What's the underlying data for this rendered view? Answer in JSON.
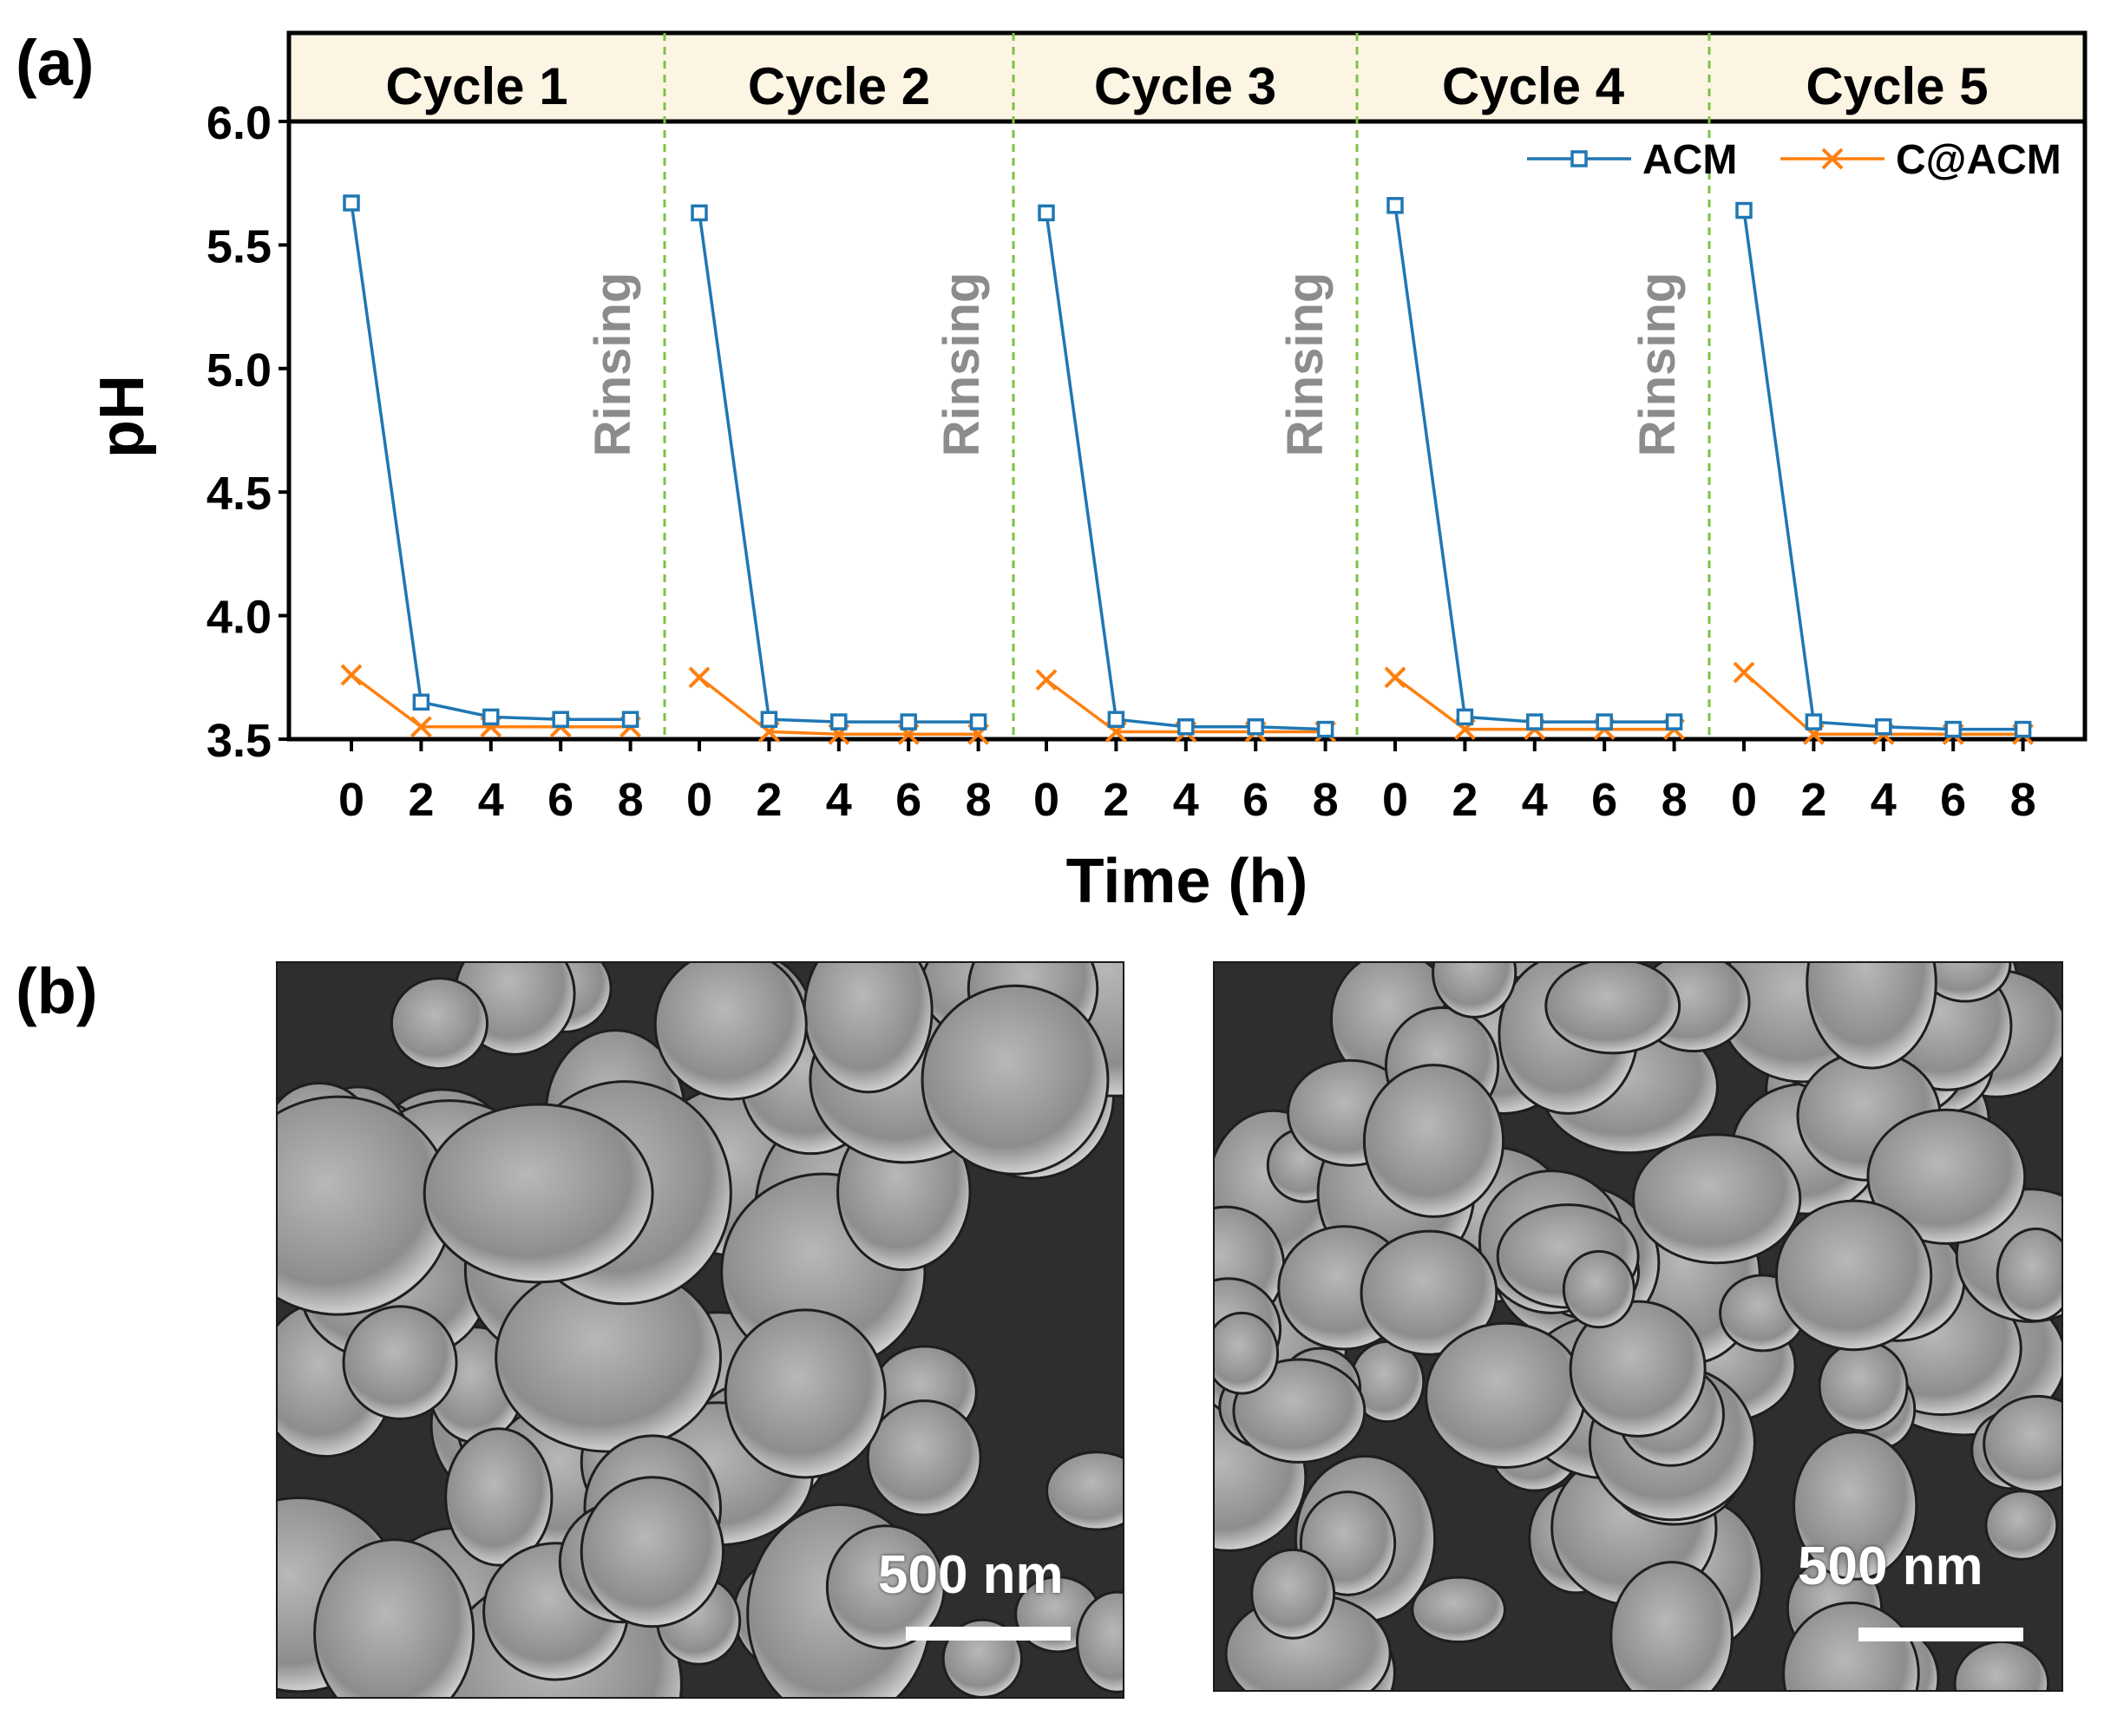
{
  "panels": {
    "a_label": "(a)",
    "b_label": "(b)"
  },
  "chart_data": {
    "type": "line",
    "xlabel": "Time (h)",
    "ylabel": "pH",
    "ylim": [
      3.5,
      6.0
    ],
    "yticks": [
      "3.5",
      "4.0",
      "4.5",
      "5.0",
      "5.5",
      "6.0"
    ],
    "x_ticks": [
      "0",
      "2",
      "4",
      "6",
      "8"
    ],
    "cycles": [
      "Cycle 1",
      "Cycle 2",
      "Cycle 3",
      "Cycle 4",
      "Cycle 5"
    ],
    "separator_label": "Rinsing",
    "legend_position": "top-right",
    "header_color": "#fdf5e4",
    "separator_color": "#7dc242",
    "x": [
      0,
      2,
      4,
      6,
      8
    ],
    "series": [
      {
        "name": "ACM",
        "color": "#1f77b4",
        "marker": "square",
        "values": [
          [
            5.67,
            3.65,
            3.59,
            3.58,
            3.58
          ],
          [
            5.63,
            3.58,
            3.57,
            3.57,
            3.57
          ],
          [
            5.63,
            3.58,
            3.55,
            3.55,
            3.54
          ],
          [
            5.66,
            3.59,
            3.57,
            3.57,
            3.57
          ],
          [
            5.64,
            3.57,
            3.55,
            3.54,
            3.54
          ]
        ]
      },
      {
        "name": "C@ACM",
        "color": "#ff7f0e",
        "marker": "x",
        "values": [
          [
            3.76,
            3.55,
            3.55,
            3.55,
            3.55
          ],
          [
            3.75,
            3.53,
            3.52,
            3.52,
            3.52
          ],
          [
            3.74,
            3.53,
            3.53,
            3.53,
            3.53
          ],
          [
            3.75,
            3.54,
            3.54,
            3.54,
            3.54
          ],
          [
            3.77,
            3.52,
            3.52,
            3.52,
            3.52
          ]
        ]
      }
    ]
  },
  "sem_images": [
    {
      "name": "sem-image-acm",
      "scale_label": "500 nm"
    },
    {
      "name": "sem-image-c-acm",
      "scale_label": "500 nm"
    }
  ]
}
